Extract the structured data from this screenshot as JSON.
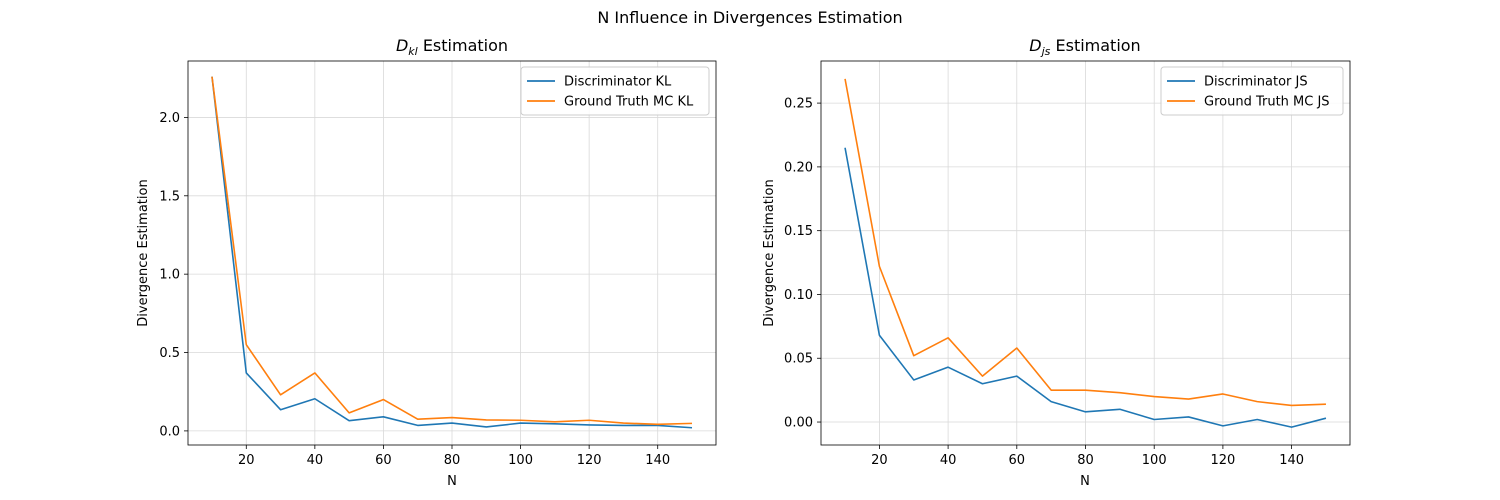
{
  "figure": {
    "suptitle": "N Influence in Divergences Estimation"
  },
  "chart_data": [
    {
      "type": "line",
      "title_main": "D",
      "title_sub": "kl",
      "title_rest": " Estimation",
      "xlabel": "N",
      "ylabel": "Divergence Estimation",
      "xlim": [
        3,
        157
      ],
      "ylim": [
        -0.09,
        2.36
      ],
      "xticks": [
        20,
        40,
        60,
        80,
        100,
        120,
        140
      ],
      "yticks": [
        0.0,
        0.5,
        1.0,
        1.5,
        2.0
      ],
      "ytick_labels": [
        "0.0",
        "0.5",
        "1.0",
        "1.5",
        "2.0"
      ],
      "grid": true,
      "legend_position": "upper right",
      "x": [
        10,
        20,
        30,
        40,
        50,
        60,
        70,
        80,
        90,
        100,
        110,
        120,
        130,
        140,
        150
      ],
      "series": [
        {
          "name": "Discriminator KL",
          "color": "#1f77b4",
          "values": [
            2.26,
            0.37,
            0.135,
            0.205,
            0.065,
            0.09,
            0.035,
            0.05,
            0.025,
            0.05,
            0.045,
            0.038,
            0.035,
            0.035,
            0.02
          ]
        },
        {
          "name": "Ground Truth MC KL",
          "color": "#ff7f0e",
          "values": [
            2.26,
            0.55,
            0.23,
            0.37,
            0.115,
            0.2,
            0.075,
            0.085,
            0.07,
            0.068,
            0.058,
            0.068,
            0.05,
            0.042,
            0.048
          ]
        }
      ]
    },
    {
      "type": "line",
      "title_main": "D",
      "title_sub": "js",
      "title_rest": " Estimation",
      "xlabel": "N",
      "ylabel": "Divergence Estimation",
      "xlim": [
        3,
        157
      ],
      "ylim": [
        -0.018,
        0.283
      ],
      "xticks": [
        20,
        40,
        60,
        80,
        100,
        120,
        140
      ],
      "yticks": [
        0.0,
        0.05,
        0.1,
        0.15,
        0.2,
        0.25
      ],
      "ytick_labels": [
        "0.00",
        "0.05",
        "0.10",
        "0.15",
        "0.20",
        "0.25"
      ],
      "grid": true,
      "legend_position": "upper right",
      "x": [
        10,
        20,
        30,
        40,
        50,
        60,
        70,
        80,
        90,
        100,
        110,
        120,
        130,
        140,
        150
      ],
      "series": [
        {
          "name": "Discriminator JS",
          "color": "#1f77b4",
          "values": [
            0.215,
            0.068,
            0.033,
            0.043,
            0.03,
            0.036,
            0.016,
            0.008,
            0.01,
            0.002,
            0.004,
            -0.003,
            0.002,
            -0.004,
            0.003
          ]
        },
        {
          "name": "Ground Truth MC JS",
          "color": "#ff7f0e",
          "values": [
            0.269,
            0.122,
            0.052,
            0.066,
            0.036,
            0.058,
            0.025,
            0.025,
            0.023,
            0.02,
            0.018,
            0.022,
            0.016,
            0.013,
            0.014
          ]
        }
      ]
    }
  ]
}
